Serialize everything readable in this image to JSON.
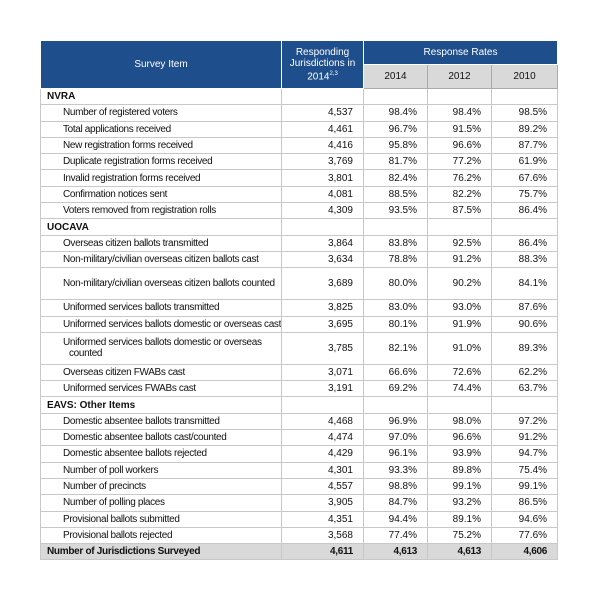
{
  "table": {
    "header": {
      "survey_item": "Survey Item",
      "responding": "Responding Jurisdictions in 2014",
      "responding_note": "2,3",
      "response_rates": "Response Rates",
      "years": [
        "2014",
        "2012",
        "2010"
      ]
    },
    "sections": [
      {
        "title": "NVRA",
        "rows": [
          [
            "Number of registered voters",
            "4,537",
            "98.4%",
            "98.4%",
            "98.5%"
          ],
          [
            "Total applications received",
            "4,461",
            "96.7%",
            "91.5%",
            "89.2%"
          ],
          [
            "New registration forms received",
            "4,416",
            "95.8%",
            "96.6%",
            "87.7%"
          ],
          [
            "Duplicate registration forms received",
            "3,769",
            "81.7%",
            "77.2%",
            "61.9%"
          ],
          [
            "Invalid registration forms received",
            "3,801",
            "82.4%",
            "76.2%",
            "67.6%"
          ],
          [
            "Confirmation notices sent",
            "4,081",
            "88.5%",
            "82.2%",
            "75.7%"
          ],
          [
            "Voters removed from registration rolls",
            "4,309",
            "93.5%",
            "87.5%",
            "86.4%"
          ]
        ]
      },
      {
        "title": "UOCAVA",
        "rows": [
          [
            "Overseas citizen ballots transmitted",
            "3,864",
            "83.8%",
            "92.5%",
            "86.4%"
          ],
          [
            "Non-military/civilian overseas citizen ballots cast",
            "3,634",
            "78.8%",
            "91.2%",
            "88.3%"
          ],
          [
            "Non-military/civilian overseas citizen ballots counted",
            "3,689",
            "80.0%",
            "90.2%",
            "84.1%"
          ],
          [
            "Uniformed services ballots transmitted",
            "3,825",
            "83.0%",
            "93.0%",
            "87.6%"
          ],
          [
            "Uniformed services ballots domestic or overseas cast",
            "3,695",
            "80.1%",
            "91.9%",
            "90.6%"
          ],
          [
            "Uniformed services ballots domestic or overseas counted",
            "3,785",
            "82.1%",
            "91.0%",
            "89.3%"
          ],
          [
            "Overseas citizen FWABs cast",
            "3,071",
            "66.6%",
            "72.6%",
            "62.2%"
          ],
          [
            "Uniformed services FWABs cast",
            "3,191",
            "69.2%",
            "74.4%",
            "63.7%"
          ]
        ]
      },
      {
        "title": "EAVS: Other Items",
        "rows": [
          [
            "Domestic absentee ballots transmitted",
            "4,468",
            "96.9%",
            "98.0%",
            "97.2%"
          ],
          [
            "Domestic absentee ballots cast/counted",
            "4,474",
            "97.0%",
            "96.6%",
            "91.2%"
          ],
          [
            "Domestic absentee ballots rejected",
            "4,429",
            "96.1%",
            "93.9%",
            "94.7%"
          ],
          [
            "Number of poll workers",
            "4,301",
            "93.3%",
            "89.8%",
            "75.4%"
          ],
          [
            "Number of precincts",
            "4,557",
            "98.8%",
            "99.1%",
            "99.1%"
          ],
          [
            "Number of polling places",
            "3,905",
            "84.7%",
            "93.2%",
            "86.5%"
          ],
          [
            "Provisional ballots submitted",
            "4,351",
            "94.4%",
            "89.1%",
            "94.6%"
          ],
          [
            "Provisional ballots rejected",
            "3,568",
            "77.4%",
            "75.2%",
            "77.6%"
          ]
        ]
      }
    ],
    "footer": [
      "Number of Jurisdictions Surveyed",
      "4,611",
      "4,613",
      "4,613",
      "4,606"
    ]
  }
}
